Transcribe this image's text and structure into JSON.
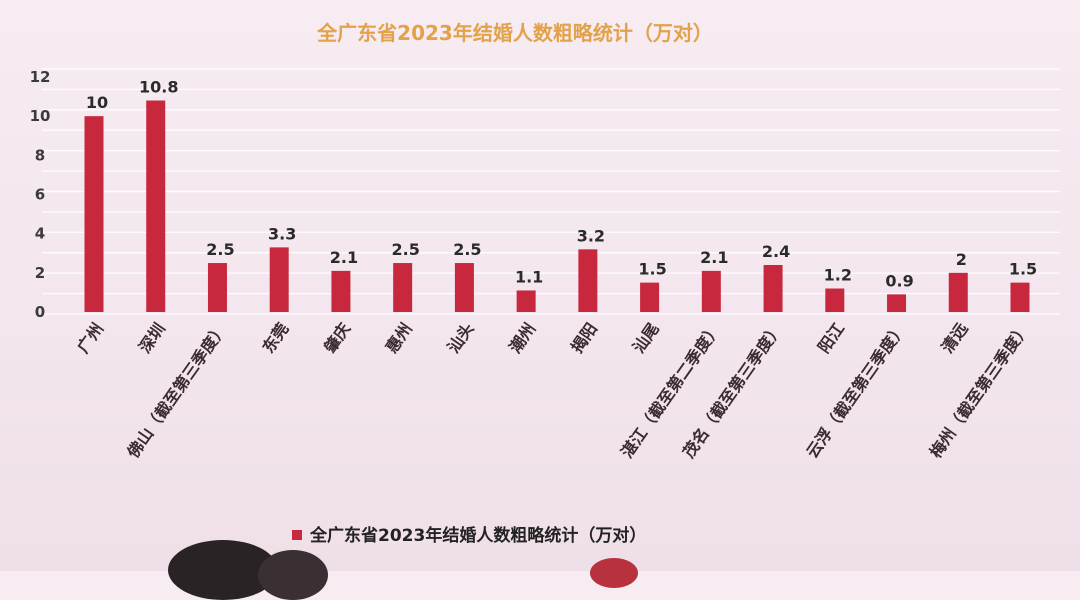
{
  "chart_data": {
    "type": "bar",
    "title": "全广东省2023年结婚人数粗略统计（万对）",
    "categories": [
      "广州",
      "深圳",
      "佛山（截至第三季度）",
      "东莞",
      "肇庆",
      "惠州",
      "汕头",
      "潮州",
      "揭阳",
      "汕尾",
      "湛江（截至第二季度）",
      "茂名（截至第三季度）",
      "阳江",
      "云浮（截至第三季度）",
      "清远",
      "梅州（截至第三季度）"
    ],
    "series": [
      {
        "name": "全广东省2023年结婚人数粗略统计（万对）",
        "values": [
          10,
          10.8,
          2.5,
          3.3,
          2.1,
          2.5,
          2.5,
          1.1,
          3.2,
          1.5,
          2.1,
          2.4,
          1.2,
          0.9,
          2,
          1.5
        ]
      }
    ],
    "value_labels": [
      "10",
      "10.8",
      "2.5",
      "3.3",
      "2.1",
      "2.5",
      "2.5",
      "1.1",
      "3.2",
      "1.5",
      "2.1",
      "2.4",
      "1.2",
      "0.9",
      "2",
      "1.5"
    ],
    "y_ticks": [
      "0",
      "2",
      "4",
      "6",
      "8",
      "10",
      "12"
    ],
    "ylim": [
      0,
      12
    ],
    "grid": true,
    "legend_position": "bottom-left",
    "colors": {
      "bar": "#c8283d",
      "title": "#e3a14a",
      "grid": "#ffffff"
    }
  }
}
